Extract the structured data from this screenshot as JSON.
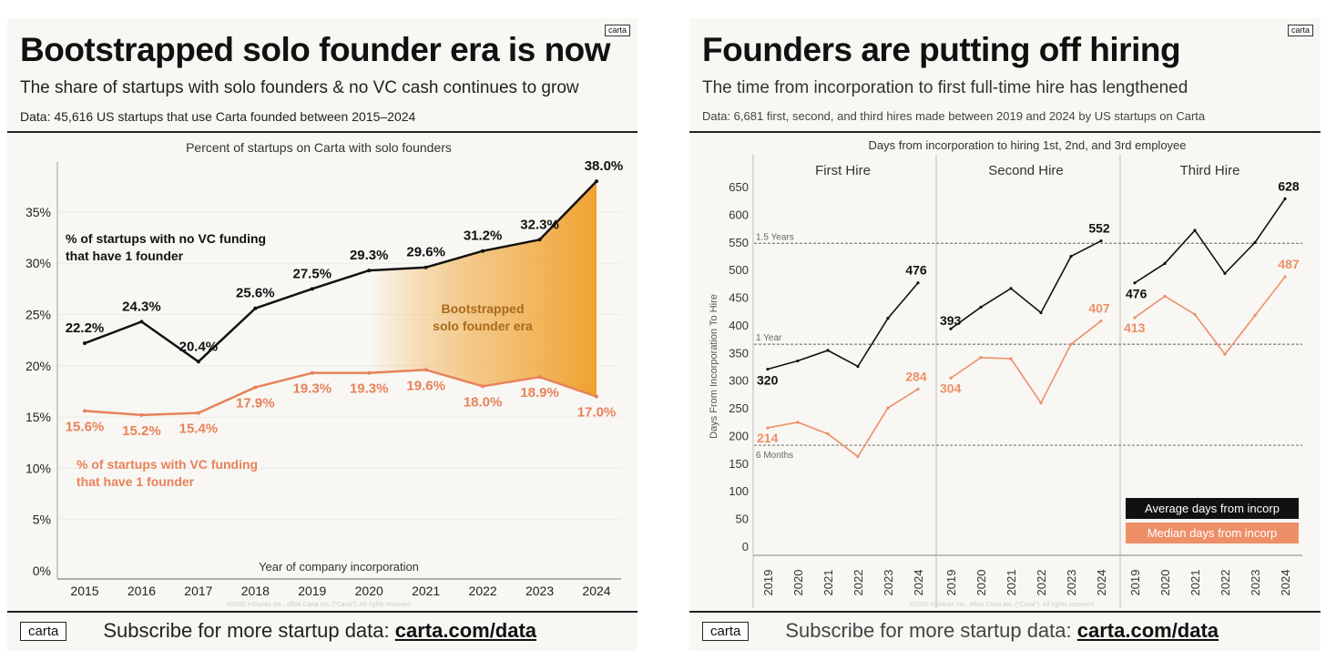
{
  "left": {
    "brand": "carta",
    "title": "Bootstrapped solo founder era is now",
    "subtitle": "The share of startups with solo founders & no VC cash continues to grow",
    "data_note": "Data: 45,616 US startups that use Carta founded between 2015–2024",
    "copyright": "©2025 eShares Inc., d/b/a Carta Inc. (\"Carta\"). All rights reserved",
    "footer_text": "Subscribe for more startup data:",
    "footer_link": "carta.com/data"
  },
  "right": {
    "brand": "carta",
    "title": "Founders are putting off hiring",
    "subtitle": "The time from incorporation to first full-time hire has lengthened",
    "data_note": "Data: 6,681 first, second, and third hires made between 2019 and 2024 by US startups on Carta",
    "copyright": "©2025 eShares Inc., d/b/a Carta Inc. (\"Carta\"). All rights reserved",
    "footer_text": "Subscribe for more startup data:",
    "footer_link": "carta.com/data"
  },
  "chart_data": [
    {
      "type": "line",
      "title": "Percent of startups on Carta with solo founders",
      "xlabel": "Year of company incorporation",
      "ylabel": "",
      "ylim": [
        0,
        38
      ],
      "yticks": [
        "0%",
        "5%",
        "10%",
        "15%",
        "20%",
        "25%",
        "30%",
        "35%"
      ],
      "categories": [
        "2015",
        "2016",
        "2017",
        "2018",
        "2019",
        "2020",
        "2021",
        "2022",
        "2023",
        "2024"
      ],
      "series": [
        {
          "name": "% of startups with no VC funding that have 1 founder",
          "color": "#111111",
          "values": [
            22.2,
            24.3,
            20.4,
            25.6,
            27.5,
            29.3,
            29.6,
            31.2,
            32.3,
            38.0
          ],
          "labels": [
            "22.2%",
            "24.3%",
            "20.4%",
            "25.6%",
            "27.5%",
            "29.3%",
            "29.6%",
            "31.2%",
            "32.3%",
            "38.0%"
          ]
        },
        {
          "name": "% of startups with VC funding that have 1 founder",
          "color": "#e8825a",
          "values": [
            15.6,
            15.2,
            15.4,
            17.9,
            19.3,
            19.3,
            19.6,
            18.0,
            18.9,
            17.0
          ],
          "labels": [
            "15.6%",
            "15.2%",
            "15.4%",
            "17.9%",
            "19.3%",
            "19.3%",
            "19.6%",
            "18.0%",
            "18.9%",
            "17.0%"
          ]
        }
      ],
      "annotations": {
        "black_label": [
          "% of startups with no VC funding",
          "that have 1 founder"
        ],
        "orange_label": [
          "% of startups with VC funding",
          "that have 1 founder"
        ],
        "shaded_label": [
          "Bootstrapped",
          "solo founder era"
        ],
        "shaded_range": [
          "2020",
          "2024"
        ],
        "shaded_color": "#efa22e"
      },
      "grid": true
    },
    {
      "type": "line",
      "title": "Days from incorporation to hiring 1st, 2nd, and 3rd employee",
      "ylabel": "Days From Incorporation To Hire",
      "ylim": [
        0,
        650
      ],
      "yticks": [
        0,
        50,
        100,
        150,
        200,
        250,
        300,
        350,
        400,
        450,
        500,
        550,
        600,
        650
      ],
      "categories": [
        "2019",
        "2020",
        "2021",
        "2022",
        "2023",
        "2024"
      ],
      "panels": [
        {
          "name": "First Hire",
          "average": [
            320,
            335,
            354,
            325,
            412,
            476
          ],
          "median": [
            214,
            224,
            203,
            162,
            250,
            284
          ],
          "average_labels": {
            "first": "320",
            "last": "476"
          },
          "median_labels": {
            "first": "214",
            "last": "284"
          }
        },
        {
          "name": "Second Hire",
          "average": [
            393,
            432,
            466,
            422,
            524,
            552
          ],
          "median": [
            304,
            341,
            339,
            259,
            365,
            407
          ],
          "average_labels": {
            "first": "393",
            "last": "552"
          },
          "median_labels": {
            "first": "304",
            "last": "407"
          }
        },
        {
          "name": "Third Hire",
          "average": [
            476,
            511,
            571,
            493,
            549,
            628
          ],
          "median": [
            413,
            452,
            419,
            347,
            417,
            487
          ],
          "average_labels": {
            "first": "476",
            "last": "628"
          },
          "median_labels": {
            "first": "413",
            "last": "487"
          }
        }
      ],
      "reference_lines": [
        {
          "value": 182.5,
          "label": "6 Months"
        },
        {
          "value": 365,
          "label": "1 Year"
        },
        {
          "value": 547.5,
          "label": "1.5 Years"
        }
      ],
      "legend": [
        {
          "label": "Average days from incorp",
          "color": "#111111"
        },
        {
          "label": "Median days from incorp",
          "color": "#ee8f68"
        }
      ],
      "legend_position": "bottom-right"
    }
  ]
}
